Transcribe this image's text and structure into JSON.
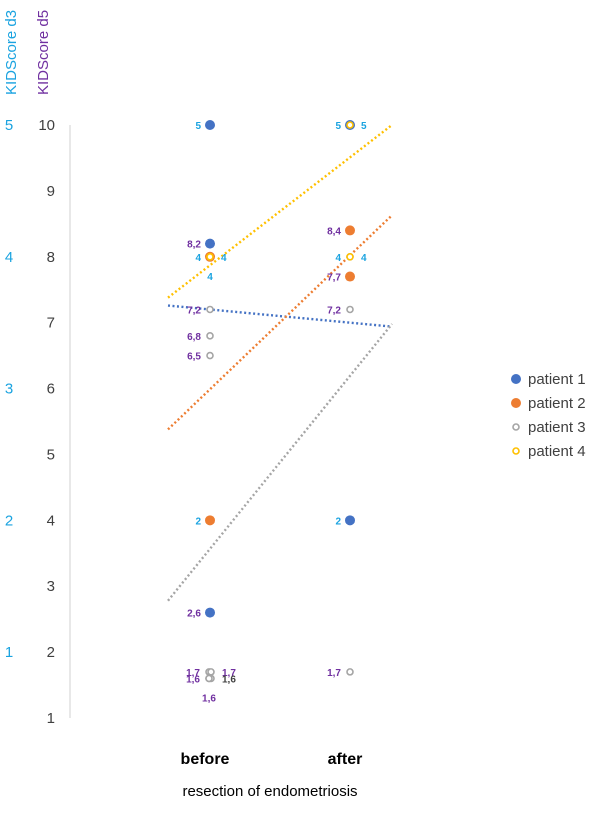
{
  "chart_data": {
    "type": "scatter",
    "title": "",
    "xlabel": "resection of endometriosis",
    "categories": [
      "before",
      "after"
    ],
    "y_axis_left_label": "KIDScore d3",
    "y_axis_label": "KIDScore d5",
    "ylim": [
      1,
      10
    ],
    "y_ticks": [
      "1",
      "2",
      "3",
      "4",
      "5",
      "6",
      "7",
      "8",
      "9",
      "10"
    ],
    "d3_axis": {
      "label": "KIDScore d3",
      "ticks": [
        {
          "label": "1",
          "at": 2
        },
        {
          "label": "2",
          "at": 4
        },
        {
          "label": "3",
          "at": 6
        },
        {
          "label": "4",
          "at": 8
        },
        {
          "label": "5",
          "at": 10
        }
      ]
    },
    "grid": false,
    "legend_position": "right",
    "colors": {
      "patient_1": "#4472c4",
      "patient_2": "#ed7d31",
      "patient_3": "#a5a5a5",
      "patient_4": "#ffc000",
      "d3_labels": "#1aa3e0",
      "d5_labels": "#7030a0",
      "other_labels": "#404040"
    },
    "series": [
      {
        "name": "patient 1",
        "key": "patient_1",
        "marker": "filled",
        "points": [
          {
            "x": "before",
            "y": 10,
            "label": "5",
            "label_color": "d3_labels",
            "label_side": "left"
          },
          {
            "x": "before",
            "y": 8.2,
            "label": "8,2",
            "label_color": "d5_labels",
            "label_side": "left"
          },
          {
            "x": "before",
            "y": 2.6,
            "label": "2,6",
            "label_color": "d5_labels",
            "label_side": "left"
          },
          {
            "x": "after",
            "y": 10,
            "label": "5",
            "label_color": "d3_labels",
            "label_side": "left"
          },
          {
            "x": "after",
            "y": 4,
            "label": "2",
            "label_color": "d3_labels",
            "label_side": "left"
          }
        ],
        "trendline": {
          "before": 7.26,
          "after": 6.94
        }
      },
      {
        "name": "patient 2",
        "key": "patient_2",
        "marker": "filled",
        "points": [
          {
            "x": "before",
            "y": 8,
            "label": "4",
            "label_color": "d3_labels",
            "label_side": "left"
          },
          {
            "x": "before",
            "y": 4,
            "label": "2",
            "label_color": "d3_labels",
            "label_side": "left"
          },
          {
            "x": "after",
            "y": 8.4,
            "label": "8,4",
            "label_color": "d5_labels",
            "label_side": "left"
          },
          {
            "x": "after",
            "y": 7.7,
            "label": "7,7",
            "label_color": "d5_labels",
            "label_side": "left"
          }
        ],
        "trendline": {
          "before": 5.38,
          "after": 8.63
        }
      },
      {
        "name": "patient 3",
        "key": "patient_3",
        "marker": "hollow",
        "points": [
          {
            "x": "before",
            "y": 7.2,
            "label": "7,2",
            "label_color": "d5_labels",
            "label_side": "left"
          },
          {
            "x": "before",
            "y": 6.8,
            "label": "6,8",
            "label_color": "d5_labels",
            "label_side": "left"
          },
          {
            "x": "before",
            "y": 6.5,
            "label": "6,5",
            "label_color": "d5_labels",
            "label_side": "left"
          },
          {
            "x": "before",
            "y": 1.7,
            "label": "1,7",
            "label_color": "d5_labels",
            "label_side": "left"
          },
          {
            "x": "before",
            "y": 1.7,
            "label": "1,7",
            "label_color": "d5_labels",
            "label_side": "right"
          },
          {
            "x": "before",
            "y": 1.6,
            "label": "1,6",
            "label_color": "d5_labels",
            "label_side": "left"
          },
          {
            "x": "before",
            "y": 1.6,
            "label": "1,6",
            "label_color": "other_labels",
            "label_side": "right"
          },
          {
            "x": "before",
            "y": 1.6,
            "label": "1,6",
            "label_color": "d5_labels",
            "label_side": "below"
          },
          {
            "x": "after",
            "y": 8,
            "label": "4",
            "label_color": "d3_labels",
            "label_side": "right"
          },
          {
            "x": "after",
            "y": 7.2,
            "label": "7,2",
            "label_color": "d5_labels",
            "label_side": "left"
          },
          {
            "x": "after",
            "y": 1.7,
            "label": "1,7",
            "label_color": "d5_labels",
            "label_side": "left"
          }
        ],
        "trendline": {
          "before": 2.78,
          "after": 6.98
        }
      },
      {
        "name": "patient 4",
        "key": "patient_4",
        "marker": "hollow",
        "points": [
          {
            "x": "before",
            "y": 8,
            "label": "4",
            "label_color": "d3_labels",
            "label_side": "right"
          },
          {
            "x": "before",
            "y": 8,
            "label": "4",
            "label_color": "d3_labels",
            "label_side": "below"
          },
          {
            "x": "after",
            "y": 10,
            "label": "5",
            "label_color": "d3_labels",
            "label_side": "right"
          },
          {
            "x": "after",
            "y": 8,
            "label": "4",
            "label_color": "d3_labels",
            "label_side": "left"
          }
        ],
        "trendline": {
          "before": 7.38,
          "after": 10.0
        }
      }
    ]
  }
}
